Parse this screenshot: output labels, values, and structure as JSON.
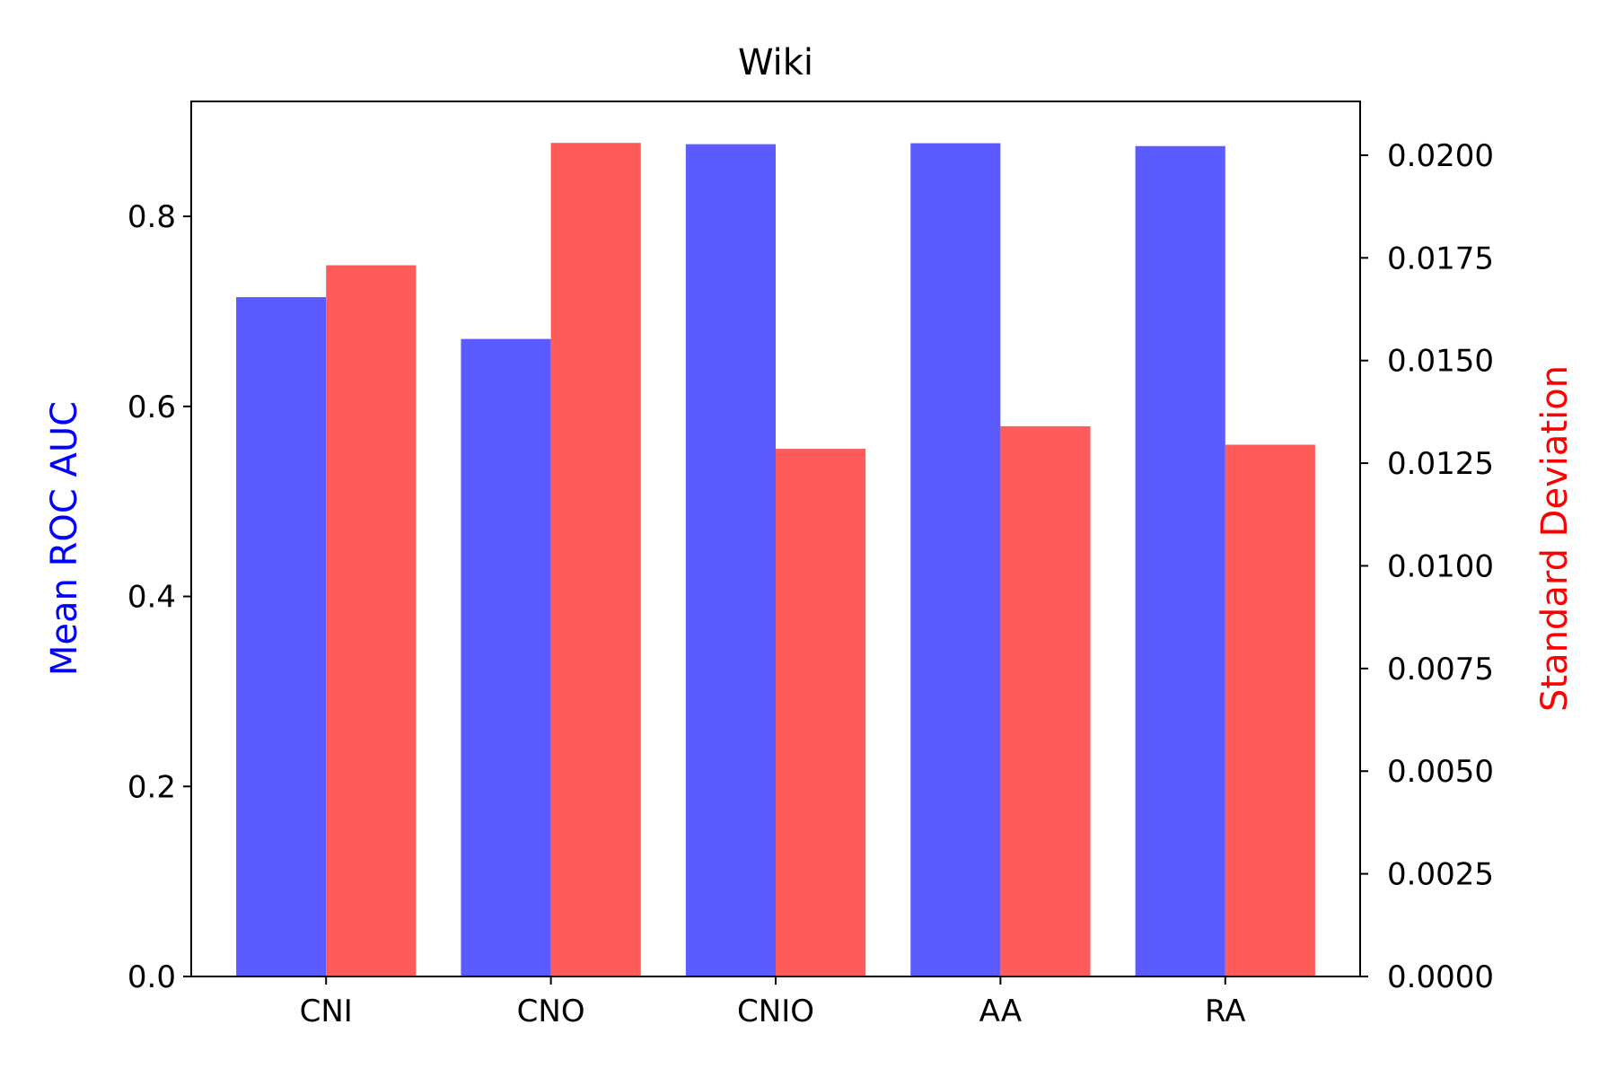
{
  "chart_data": {
    "type": "bar",
    "title": "Wiki",
    "categories": [
      "CNI",
      "CNO",
      "CNIO",
      "AA",
      "RA"
    ],
    "series": [
      {
        "axis": "left",
        "color": "#5b5bff",
        "values": [
          0.715,
          0.671,
          0.876,
          0.877,
          0.874
        ]
      },
      {
        "axis": "right",
        "color": "#ff5b5b",
        "values": [
          0.01732,
          0.0203,
          0.01285,
          0.0134,
          0.01295
        ]
      }
    ],
    "y_left": {
      "label": "Mean ROC AUC",
      "label_color": "#0000ff",
      "lim": [
        0,
        0.921
      ],
      "ticks": [
        0.0,
        0.2,
        0.4,
        0.6,
        0.8
      ],
      "tick_labels": [
        "0.0",
        "0.2",
        "0.4",
        "0.6",
        "0.8"
      ]
    },
    "y_right": {
      "label": "Standard Deviation",
      "label_color": "#ff0000",
      "lim": [
        0,
        0.02131
      ],
      "ticks": [
        0,
        0.0025,
        0.005,
        0.0075,
        0.01,
        0.0125,
        0.015,
        0.0175,
        0.02
      ],
      "tick_labels": [
        "0.0000",
        "0.0025",
        "0.0050",
        "0.0075",
        "0.0100",
        "0.0125",
        "0.0150",
        "0.0175",
        "0.0200"
      ]
    },
    "grid": false,
    "legend": "none"
  }
}
